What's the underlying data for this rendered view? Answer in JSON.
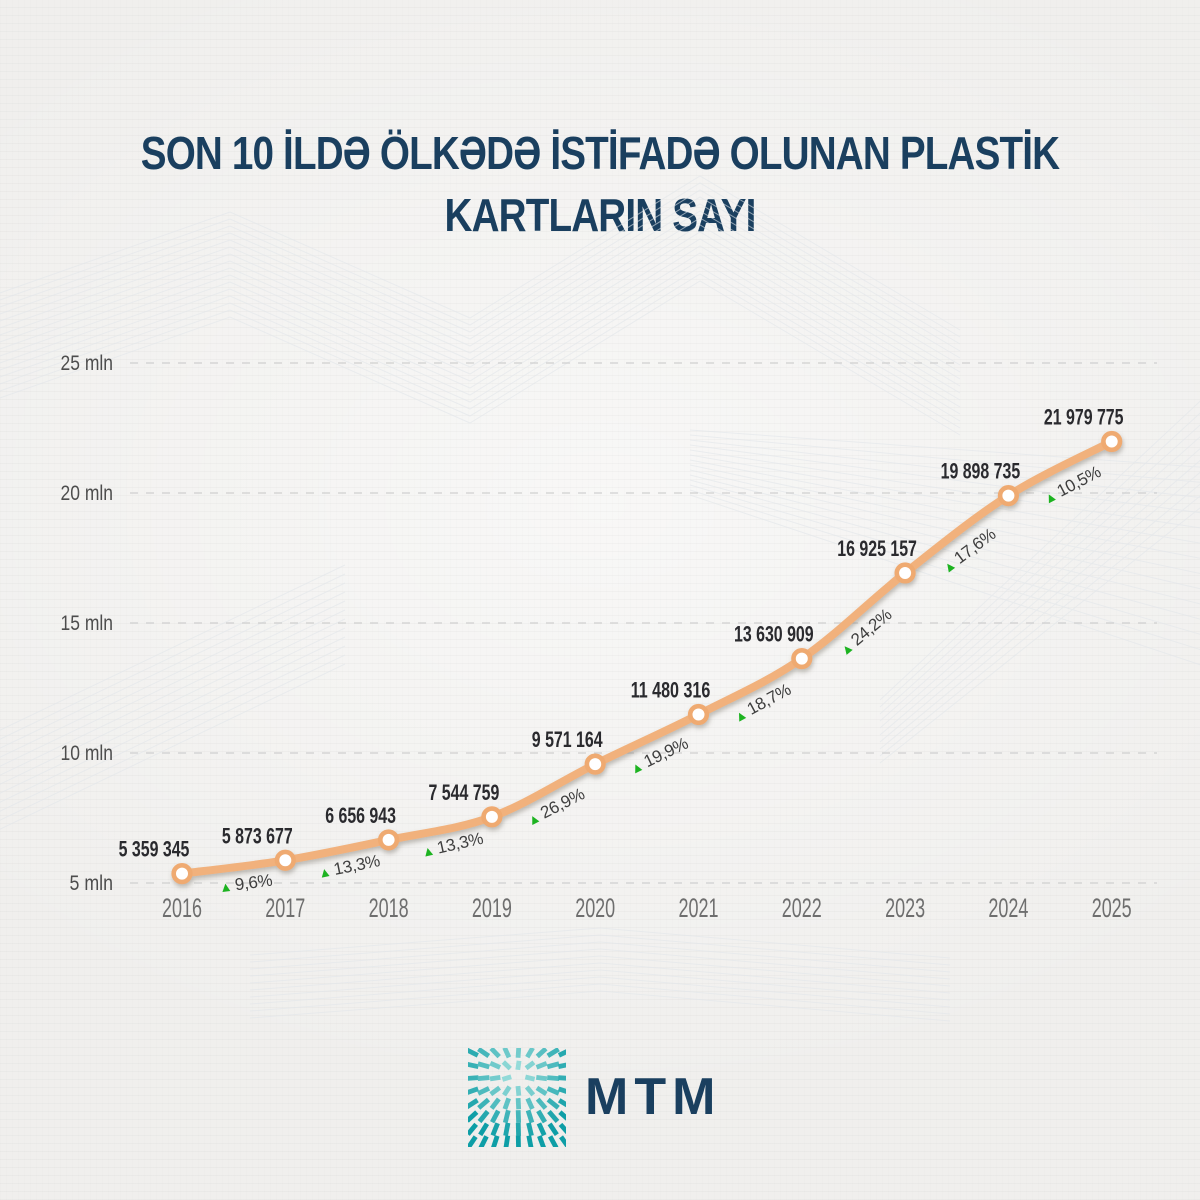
{
  "title": {
    "line1": "SON 10 İLDƏ ÖLKƏDƏ İSTİFADƏ OLUNAN PLASTİK",
    "line2": "KARTLARIN SAYI"
  },
  "chart_data": {
    "type": "line",
    "title": "SON 10 İLDƏ ÖLKƏDƏ İSTİFADƏ OLUNAN PLASTİK KARTLARIN SAYI",
    "categories": [
      "2016",
      "2017",
      "2018",
      "2019",
      "2020",
      "2021",
      "2022",
      "2023",
      "2024",
      "2025"
    ],
    "values": [
      5359345,
      5873677,
      6656943,
      7544759,
      9571164,
      11480316,
      13630909,
      16925157,
      19898735,
      21979775
    ],
    "value_labels": [
      "5 359 345",
      "5 873 677",
      "6 656 943",
      "7 544 759",
      "9 571 164",
      "11 480 316",
      "13 630 909",
      "16 925 157",
      "19 898 735",
      "21 979 775"
    ],
    "growth_labels": [
      "9,6%",
      "13,3%",
      "13,3%",
      "26,9%",
      "19,9%",
      "18,7%",
      "24,2%",
      "17,6%",
      "10,5%"
    ],
    "growth_icon": "▲",
    "y_ticks": [
      "5 mln",
      "10 mln",
      "15 mln",
      "20 mln",
      "25 mln"
    ],
    "y_tick_values": [
      5000000,
      10000000,
      15000000,
      20000000,
      25000000
    ],
    "ylim": [
      5000000,
      25000000
    ],
    "grid": "horizontal-dashed",
    "legend": "none",
    "colors": {
      "line": "#f1b17b",
      "marker_fill": "#ffffff",
      "marker_stroke": "#efaa71",
      "growth_triangle": "#1db321",
      "growth_text": "#3e3e3e",
      "value_label": "#2a2a2e",
      "year_label": "#6e6e6e",
      "y_tick_label": "#4d4d4d",
      "gridline": "#cccccc",
      "title": "#1a3f5f"
    }
  },
  "branding": {
    "logo_text": "MTM",
    "logo_text_color": "#1a3f5f",
    "logo_icon": "mtm-burst-logo",
    "burst_teal_dark": "#0e9ea6",
    "burst_teal_light": "#aee6e2"
  }
}
